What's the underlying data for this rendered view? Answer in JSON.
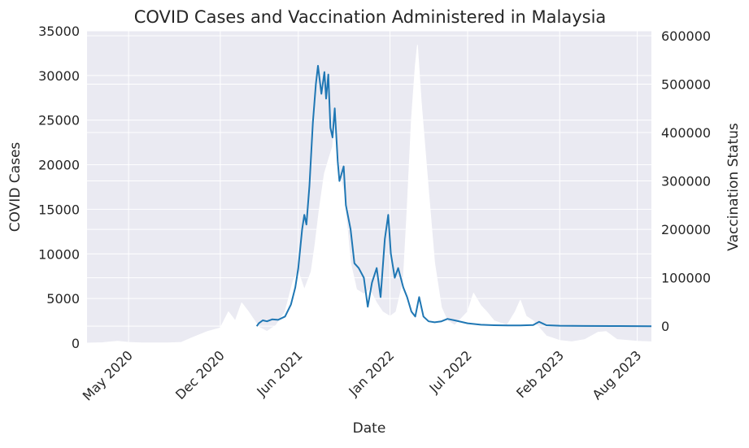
{
  "chart_data": {
    "type": "line",
    "title": "COVID Cases and Vaccination Administered in Malaysia",
    "xlabel": "Date",
    "ylabel_left": "COVID Cases",
    "ylabel_right": "Vaccination Status",
    "x_range": [
      "2020-01-25",
      "2023-09-03"
    ],
    "ylim_left": [
      0,
      35000
    ],
    "ylim_right": [
      -35000,
      610000
    ],
    "left_ticks": [
      0,
      5000,
      10000,
      15000,
      20000,
      25000,
      30000,
      35000
    ],
    "right_ticks": [
      0,
      100000,
      200000,
      300000,
      400000,
      500000,
      600000
    ],
    "x_ticks": [
      {
        "date": "2020-05-01",
        "label": "May 2020"
      },
      {
        "date": "2020-12-01",
        "label": "Dec 2020"
      },
      {
        "date": "2021-06-01",
        "label": "Jun 2021"
      },
      {
        "date": "2022-01-01",
        "label": "Jan 2022"
      },
      {
        "date": "2022-07-01",
        "label": "Jul 2022"
      },
      {
        "date": "2023-02-01",
        "label": "Feb 2023"
      },
      {
        "date": "2023-08-01",
        "label": "Aug 2023"
      }
    ],
    "grid": true,
    "background_color": "#eaeaf2",
    "series": [
      {
        "axis": "left",
        "color": "#ffffff",
        "style": "filled-white",
        "points": [
          [
            "2020-01-25",
            0
          ],
          [
            "2020-03-01",
            50
          ],
          [
            "2020-04-05",
            200
          ],
          [
            "2020-05-01",
            80
          ],
          [
            "2020-06-01",
            30
          ],
          [
            "2020-07-01",
            20
          ],
          [
            "2020-08-01",
            20
          ],
          [
            "2020-09-01",
            80
          ],
          [
            "2020-10-01",
            700
          ],
          [
            "2020-11-01",
            1300
          ],
          [
            "2020-12-01",
            1700
          ],
          [
            "2020-12-20",
            3500
          ],
          [
            "2021-01-05",
            2500
          ],
          [
            "2021-01-20",
            4500
          ],
          [
            "2021-02-05",
            3500
          ],
          [
            "2021-03-01",
            1800
          ],
          [
            "2021-03-20",
            1300
          ],
          [
            "2021-04-10",
            2000
          ],
          [
            "2021-05-01",
            3500
          ],
          [
            "2021-05-20",
            7000
          ],
          [
            "2021-06-01",
            8000
          ],
          [
            "2021-06-15",
            6000
          ],
          [
            "2021-07-01",
            8000
          ],
          [
            "2021-07-10",
            11000
          ],
          [
            "2021-07-20",
            15000
          ],
          [
            "2021-08-01",
            19000
          ],
          [
            "2021-08-10",
            20500
          ],
          [
            "2021-08-20",
            22000
          ],
          [
            "2021-08-26",
            24600
          ],
          [
            "2021-09-05",
            19000
          ],
          [
            "2021-09-15",
            17000
          ],
          [
            "2021-10-01",
            9000
          ],
          [
            "2021-10-15",
            6000
          ],
          [
            "2021-11-01",
            5500
          ],
          [
            "2021-11-15",
            6000
          ],
          [
            "2021-12-01",
            4500
          ],
          [
            "2021-12-15",
            3500
          ],
          [
            "2022-01-01",
            3000
          ],
          [
            "2022-01-15",
            3500
          ],
          [
            "2022-02-01",
            7000
          ],
          [
            "2022-02-10",
            15000
          ],
          [
            "2022-02-20",
            25000
          ],
          [
            "2022-03-01",
            31000
          ],
          [
            "2022-03-06",
            33400
          ],
          [
            "2022-03-15",
            27000
          ],
          [
            "2022-04-01",
            17000
          ],
          [
            "2022-04-15",
            9000
          ],
          [
            "2022-05-01",
            4000
          ],
          [
            "2022-05-15",
            2500
          ],
          [
            "2022-06-01",
            2000
          ],
          [
            "2022-07-01",
            3500
          ],
          [
            "2022-07-15",
            5600
          ],
          [
            "2022-08-01",
            4200
          ],
          [
            "2022-08-15",
            3500
          ],
          [
            "2022-09-01",
            2500
          ],
          [
            "2022-10-01",
            2000
          ],
          [
            "2022-10-20",
            3500
          ],
          [
            "2022-11-01",
            4800
          ],
          [
            "2022-11-15",
            3000
          ],
          [
            "2022-12-01",
            2500
          ],
          [
            "2023-01-01",
            800
          ],
          [
            "2023-02-01",
            300
          ],
          [
            "2023-03-01",
            150
          ],
          [
            "2023-04-01",
            400
          ],
          [
            "2023-05-01",
            1200
          ],
          [
            "2023-05-20",
            1300
          ],
          [
            "2023-06-15",
            400
          ],
          [
            "2023-08-01",
            200
          ],
          [
            "2023-09-03",
            150
          ]
        ]
      },
      {
        "axis": "right",
        "color": "#1f77b4",
        "style": "line",
        "points": [
          [
            "2021-02-24",
            0
          ],
          [
            "2021-03-01",
            6000
          ],
          [
            "2021-03-10",
            12000
          ],
          [
            "2021-03-20",
            10000
          ],
          [
            "2021-04-01",
            14000
          ],
          [
            "2021-04-15",
            13000
          ],
          [
            "2021-05-01",
            20000
          ],
          [
            "2021-05-15",
            45000
          ],
          [
            "2021-05-25",
            80000
          ],
          [
            "2021-06-01",
            120000
          ],
          [
            "2021-06-10",
            200000
          ],
          [
            "2021-06-15",
            230000
          ],
          [
            "2021-06-20",
            210000
          ],
          [
            "2021-06-27",
            290000
          ],
          [
            "2021-07-05",
            420000
          ],
          [
            "2021-07-12",
            500000
          ],
          [
            "2021-07-17",
            538000
          ],
          [
            "2021-07-25",
            480000
          ],
          [
            "2021-08-01",
            525000
          ],
          [
            "2021-08-05",
            470000
          ],
          [
            "2021-08-10",
            520000
          ],
          [
            "2021-08-15",
            410000
          ],
          [
            "2021-08-20",
            390000
          ],
          [
            "2021-08-25",
            450000
          ],
          [
            "2021-09-01",
            340000
          ],
          [
            "2021-09-05",
            300000
          ],
          [
            "2021-09-15",
            330000
          ],
          [
            "2021-09-20",
            250000
          ],
          [
            "2021-10-01",
            200000
          ],
          [
            "2021-10-10",
            130000
          ],
          [
            "2021-10-20",
            120000
          ],
          [
            "2021-11-01",
            100000
          ],
          [
            "2021-11-10",
            40000
          ],
          [
            "2021-11-20",
            90000
          ],
          [
            "2021-12-01",
            120000
          ],
          [
            "2021-12-10",
            60000
          ],
          [
            "2021-12-20",
            180000
          ],
          [
            "2021-12-28",
            230000
          ],
          [
            "2022-01-03",
            150000
          ],
          [
            "2022-01-12",
            100000
          ],
          [
            "2022-01-20",
            120000
          ],
          [
            "2022-02-01",
            80000
          ],
          [
            "2022-02-10",
            60000
          ],
          [
            "2022-02-20",
            30000
          ],
          [
            "2022-03-01",
            20000
          ],
          [
            "2022-03-10",
            60000
          ],
          [
            "2022-03-20",
            20000
          ],
          [
            "2022-04-01",
            10000
          ],
          [
            "2022-04-15",
            8000
          ],
          [
            "2022-05-01",
            10000
          ],
          [
            "2022-05-15",
            15000
          ],
          [
            "2022-06-01",
            12000
          ],
          [
            "2022-07-01",
            6000
          ],
          [
            "2022-08-01",
            3000
          ],
          [
            "2022-09-01",
            2000
          ],
          [
            "2022-10-01",
            1500
          ],
          [
            "2022-11-01",
            1500
          ],
          [
            "2022-12-01",
            2500
          ],
          [
            "2022-12-15",
            9000
          ],
          [
            "2023-01-01",
            2000
          ],
          [
            "2023-02-01",
            1000
          ],
          [
            "2023-04-01",
            500
          ],
          [
            "2023-06-01",
            200
          ],
          [
            "2023-09-03",
            0
          ]
        ]
      }
    ]
  }
}
